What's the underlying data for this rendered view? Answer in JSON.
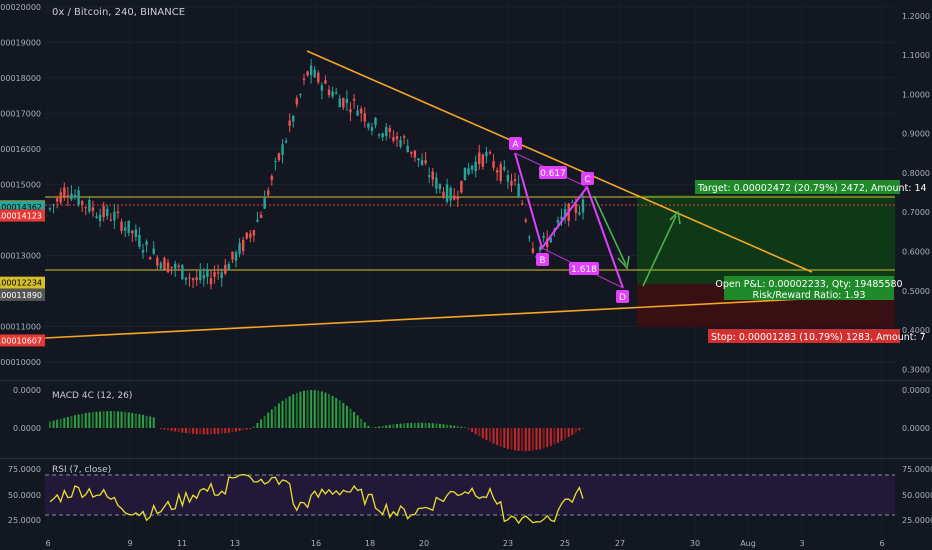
{
  "symbol_title": "0x / Bitcoin, 240, BINANCE",
  "colors": {
    "background": "#131722",
    "up_candle": "#26a69a",
    "down_candle": "#ef5350",
    "trendline": "#f5a623",
    "pattern": "#e040fb",
    "arrow": "#4caf50",
    "hline_yellow": "#d4c02e",
    "hline_red": "#e53935",
    "target_zone": "#0f3d17",
    "stop_zone": "#3d0f12"
  },
  "left_axis": {
    "ticks": [
      "0.00020000",
      "0.00019000",
      "0.00018000",
      "0.00017000",
      "0.00016000",
      "0.00015000",
      "0.00013000",
      "0.00011000",
      "0.00010000"
    ],
    "ticks_values": [
      0.0002,
      0.00019,
      0.00018,
      0.00017,
      0.00016,
      0.00015,
      0.00013,
      0.00011,
      0.0001
    ],
    "price_labels": [
      {
        "text": "0.00014380",
        "value": 0.0001438,
        "bg": "#d4c02e",
        "fg": "#000000"
      },
      {
        "text": "0.00014362",
        "value": 0.00014362,
        "bg": "#26a69a",
        "fg": "#000000"
      },
      {
        "text": "0.00014123",
        "value": 0.00014123,
        "bg": "#e53935",
        "fg": "#ffffff"
      },
      {
        "text": "0.00012234",
        "value": 0.00012234,
        "bg": "#d4c02e",
        "fg": "#000000"
      },
      {
        "text": "0.00011890",
        "value": 0.0001189,
        "bg": "#555555",
        "fg": "#ffffff"
      },
      {
        "text": "0.00010607",
        "value": 0.00010607,
        "bg": "#e53935",
        "fg": "#ffffff"
      }
    ]
  },
  "right_axis": {
    "ticks": [
      "1.2000",
      "1.1000",
      "1.0000",
      "0.9000",
      "0.8000",
      "0.7000",
      "0.6000",
      "0.5000",
      "0.4000",
      "0.3000"
    ],
    "ticks_values": [
      1.2,
      1.1,
      1.0,
      0.9,
      0.8,
      0.7,
      0.6,
      0.5,
      0.4,
      0.3
    ],
    "macd_ticks": [
      "0.0000",
      "0.0000"
    ],
    "rsi_ticks": [
      "75.0000",
      "50.0000",
      "25.0000"
    ]
  },
  "x_axis": {
    "labels": [
      "6",
      "9",
      "11",
      "13",
      "16",
      "18",
      "20",
      "23",
      "25",
      "27",
      "30",
      "Aug",
      "3",
      "6"
    ]
  },
  "macd": {
    "label": "MACD 4C (12, 26)",
    "ticks": [
      "0.0000",
      "0.0000"
    ]
  },
  "rsi": {
    "label": "RSI (7, close)",
    "ticks": [
      "75.0000",
      "50.0000",
      "25.0000"
    ]
  },
  "pattern": {
    "points": [
      "A",
      "B",
      "C",
      "D"
    ],
    "ratios": [
      "0.617",
      "1.618"
    ]
  },
  "position": {
    "target": "Target: 0.00002472 (20.79%) 2472, Amount: 14",
    "open_pl": "Open P&L: 0.00002233, Qty: 19485580",
    "risk_reward": "Risk/Reward Ratio: 1.93",
    "stop": "Stop: 0.00001283 (10.79%) 1283, Amount: 7"
  },
  "chart_data": {
    "type": "candlestick",
    "title": "0x / Bitcoin, 240, BINANCE",
    "y_left_range": [
      9.55e-05,
      0.0002008
    ],
    "y_right_range": [
      0.278,
      1.23
    ],
    "series": [
      {
        "name": "Close path (approx.)",
        "values": [
          0.000143,
          0.000149,
          0.000145,
          0.000142,
          0.000141,
          0.000137,
          0.000132,
          0.000128,
          0.000126,
          0.000123,
          0.000124,
          0.000127,
          0.000133,
          0.000141,
          0.000155,
          0.000168,
          0.000182,
          0.000178,
          0.000174,
          0.000172,
          0.000167,
          0.000164,
          0.000162,
          0.000156,
          0.00015,
          0.000146,
          0.000155,
          0.000158,
          0.000153,
          0.000149,
          0.000131,
          0.000135,
          0.000142,
          0.000144
        ]
      }
    ],
    "macd_range": [
      -2.4e-06,
      3.6e-06
    ],
    "rsi_range": [
      5,
      100
    ],
    "rsi_levels": [
      70,
      30
    ]
  }
}
